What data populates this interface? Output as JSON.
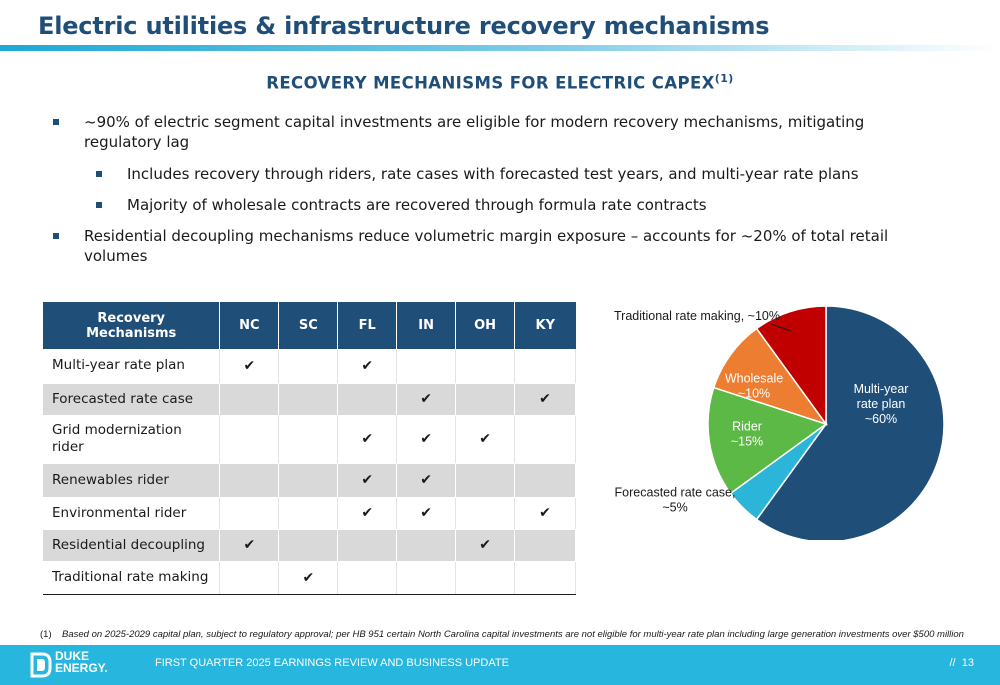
{
  "header": {
    "title": "Electric utilities & infrastructure recovery mechanisms"
  },
  "section": {
    "title": "RECOVERY MECHANISMS FOR ELECTRIC CAPEX",
    "footnote_ref": "(1)"
  },
  "bullets": [
    {
      "level": 1,
      "text": "~90% of electric segment capital investments are eligible for modern recovery mechanisms, mitigating regulatory lag"
    },
    {
      "level": 2,
      "text": "Includes recovery through riders, rate cases with forecasted test years, and multi-year rate plans"
    },
    {
      "level": 2,
      "text": "Majority of wholesale contracts are recovered through formula rate contracts"
    },
    {
      "level": 1,
      "text": "Residential decoupling mechanisms reduce volumetric margin exposure – accounts for ~20% of total retail volumes"
    }
  ],
  "table": {
    "header_label": "Recovery Mechanisms",
    "states": [
      "NC",
      "SC",
      "FL",
      "IN",
      "OH",
      "KY"
    ],
    "check_symbol": "✔",
    "rows": [
      {
        "label": "Multi-year rate plan",
        "checks": [
          true,
          false,
          true,
          false,
          false,
          false
        ]
      },
      {
        "label": "Forecasted rate case",
        "checks": [
          false,
          false,
          false,
          true,
          false,
          true
        ]
      },
      {
        "label": "Grid modernization rider",
        "checks": [
          false,
          false,
          true,
          true,
          true,
          false
        ]
      },
      {
        "label": "Renewables rider",
        "checks": [
          false,
          false,
          true,
          true,
          false,
          false
        ]
      },
      {
        "label": "Environmental rider",
        "checks": [
          false,
          false,
          true,
          true,
          false,
          true
        ]
      },
      {
        "label": "Residential decoupling",
        "checks": [
          true,
          false,
          false,
          false,
          true,
          false
        ]
      },
      {
        "label": "Traditional rate making",
        "checks": [
          false,
          true,
          false,
          false,
          false,
          false
        ]
      }
    ]
  },
  "chart_data": {
    "type": "pie",
    "slices": [
      {
        "label_lines": [
          "Multi-year",
          "rate plan",
          "~60%"
        ],
        "value": 60,
        "color": "#1f4e79",
        "label_position": "inside"
      },
      {
        "label_lines": [
          "Forecasted rate case,",
          "~5%"
        ],
        "value": 5,
        "color": "#2bb5d8",
        "label_position": "outside"
      },
      {
        "label_lines": [
          "Rider",
          "~15%"
        ],
        "value": 15,
        "color": "#5cb946",
        "label_position": "inside"
      },
      {
        "label_lines": [
          "Wholesale",
          "~10%"
        ],
        "value": 10,
        "color": "#ed7d31",
        "label_position": "inside"
      },
      {
        "label_lines": [
          "Traditional rate making, ~10%"
        ],
        "value": 10,
        "color": "#c00000",
        "label_position": "outside"
      }
    ]
  },
  "footnote": {
    "number": "(1)",
    "text": "Based on 2025-2029 capital plan, subject to regulatory approval; per HB 951 certain North Carolina capital investments are not eligible for multi-year rate plan including large generation investments over $500 million"
  },
  "footer": {
    "logo_lines": [
      "DUKE",
      "ENERGY."
    ],
    "text": "FIRST QUARTER 2025 EARNINGS REVIEW AND BUSINESS UPDATE",
    "page_sep": "//",
    "page": "13"
  }
}
